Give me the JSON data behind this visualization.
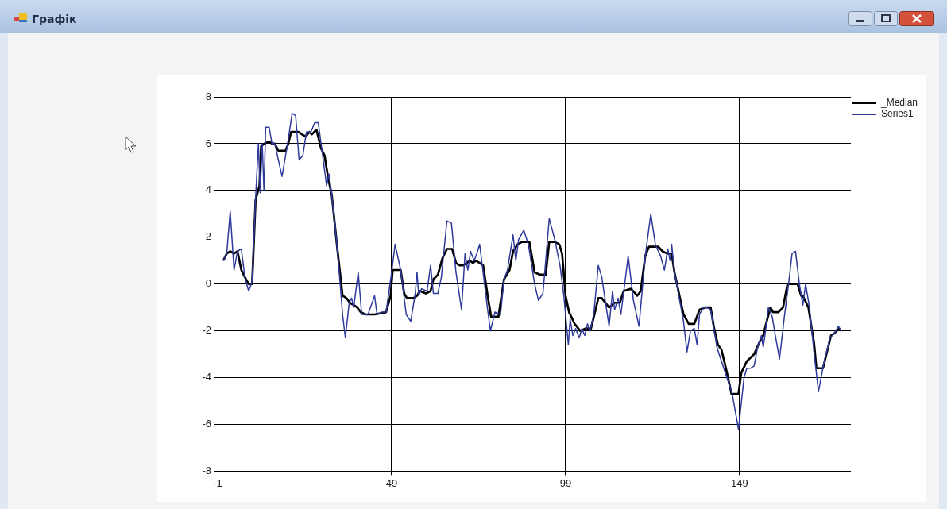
{
  "chart_data": {
    "type": "line",
    "title": "Графік",
    "xlim": [
      -1,
      181
    ],
    "xticks": [
      -1,
      49,
      99,
      149
    ],
    "ylim": [
      -8,
      8
    ],
    "yticks": [
      -8,
      -6,
      -4,
      -2,
      0,
      2,
      4,
      6,
      8
    ],
    "grid": true,
    "legend": "top right",
    "marker": "none",
    "line_style": "solid",
    "series": [
      {
        "name": "_Median",
        "color": "#000000",
        "x": [
          0.6,
          1.6,
          2.6,
          3.7,
          4.7,
          5.8,
          6.8,
          7.9,
          8.9,
          9.9,
          11.0,
          11.5,
          12.5,
          13.8,
          14.6,
          15.4,
          16.4,
          18.5,
          19.3,
          20.1,
          22.2,
          23.2,
          24.3,
          25.3,
          26.1,
          27.4,
          28.7,
          29.7,
          30.8,
          31.8,
          33.4,
          34.9,
          36.0,
          37.0,
          38.1,
          39.1,
          40.1,
          41.4,
          44.1,
          47.4,
          48.7,
          49.3,
          51.1,
          51.6,
          52.6,
          53.4,
          55.3,
          56.3,
          57.1,
          58.9,
          60.2,
          61.0,
          62.3,
          63.6,
          64.9,
          66.4,
          67.5,
          68.5,
          69.6,
          70.6,
          71.4,
          72.4,
          73.2,
          74.3,
          75.3,
          76.6,
          77.6,
          79.7,
          81.3,
          82.9,
          83.9,
          85.2,
          86.5,
          88.6,
          90.1,
          91.7,
          93.3,
          94.3,
          95.9,
          97.2,
          98.0,
          99.0,
          100.0,
          101.6,
          103.2,
          104.7,
          106.3,
          107.3,
          108.4,
          109.4,
          111.5,
          113.1,
          114.6,
          115.7,
          117.8,
          119.6,
          120.6,
          121.9,
          123.0,
          125.6,
          126.9,
          128.2,
          129.5,
          130.3,
          131.3,
          132.9,
          134.4,
          136.0,
          137.5,
          139.1,
          140.7,
          141.7,
          142.8,
          143.8,
          145.4,
          146.7,
          148.7,
          149.5,
          151.1,
          153.2,
          154.7,
          155.8,
          156.8,
          157.9,
          158.6,
          160.2,
          161.5,
          162.8,
          164.6,
          165.7,
          166.7,
          167.2,
          168.8,
          170.4,
          171.1,
          173.0,
          174.3,
          175.3,
          176.3,
          177.6,
          178.2
        ],
        "values": [
          1.0,
          1.3,
          1.4,
          1.3,
          1.4,
          0.6,
          0.3,
          0.0,
          0.0,
          3.6,
          4.2,
          5.9,
          6.0,
          6.1,
          6.0,
          6.0,
          5.7,
          5.7,
          6.0,
          6.5,
          6.5,
          6.4,
          6.3,
          6.5,
          6.4,
          6.6,
          5.8,
          5.5,
          4.5,
          3.8,
          1.5,
          -0.5,
          -0.6,
          -0.8,
          -0.9,
          -1.0,
          -1.2,
          -1.3,
          -1.3,
          -1.2,
          -0.5,
          0.6,
          0.6,
          0.6,
          -0.4,
          -0.6,
          -0.6,
          -0.5,
          -0.3,
          -0.4,
          -0.3,
          0.2,
          0.4,
          1.1,
          1.5,
          1.5,
          0.9,
          0.8,
          0.8,
          0.9,
          1.0,
          0.9,
          1.0,
          0.9,
          0.8,
          -0.5,
          -1.4,
          -1.4,
          0.2,
          0.6,
          1.4,
          1.7,
          1.8,
          1.8,
          0.5,
          0.4,
          0.4,
          1.8,
          1.8,
          1.7,
          1.3,
          -0.5,
          -1.2,
          -1.7,
          -2.0,
          -1.9,
          -1.9,
          -1.3,
          -0.6,
          -0.6,
          -1.0,
          -0.8,
          -0.8,
          -0.3,
          -0.2,
          -0.5,
          -0.3,
          1.2,
          1.6,
          1.6,
          1.4,
          1.3,
          1.3,
          0.5,
          -0.2,
          -1.3,
          -1.7,
          -1.7,
          -1.1,
          -1.0,
          -1.0,
          -1.9,
          -2.6,
          -2.8,
          -3.8,
          -4.7,
          -4.7,
          -3.8,
          -3.3,
          -3.0,
          -2.5,
          -2.2,
          -1.6,
          -1.0,
          -1.2,
          -1.2,
          -1.0,
          0.0,
          0.0,
          0.0,
          -0.5,
          -0.5,
          -1.0,
          -2.5,
          -3.6,
          -3.6,
          -2.8,
          -2.2,
          -2.1,
          -1.9,
          -2.0
        ]
      },
      {
        "name": "Series1",
        "color": "#2e3a9c",
        "x": [
          0.6,
          1.6,
          2.6,
          3.7,
          4.7,
          5.8,
          6.8,
          7.9,
          8.9,
          9.9,
          10.7,
          11.2,
          11.8,
          12.3,
          12.8,
          13.8,
          14.6,
          15.4,
          17.5,
          19.1,
          20.4,
          21.4,
          22.4,
          23.5,
          24.5,
          25.8,
          26.9,
          27.9,
          28.9,
          30.3,
          31.0,
          31.8,
          33.4,
          34.9,
          35.7,
          36.8,
          37.5,
          38.1,
          39.4,
          40.4,
          42.2,
          44.1,
          44.8,
          46.1,
          47.4,
          49.0,
          50.0,
          51.6,
          53.2,
          54.5,
          55.8,
          56.3,
          56.8,
          57.6,
          59.2,
          60.2,
          61.0,
          62.3,
          63.3,
          64.9,
          66.2,
          67.5,
          69.1,
          70.1,
          70.9,
          71.7,
          72.7,
          73.5,
          74.3,
          75.3,
          76.6,
          77.4,
          78.7,
          80.3,
          81.3,
          82.3,
          83.9,
          84.7,
          85.5,
          87.0,
          88.3,
          90.1,
          91.2,
          92.5,
          94.3,
          95.9,
          97.4,
          98.5,
          99.8,
          100.3,
          101.1,
          101.9,
          102.9,
          103.7,
          104.5,
          105.3,
          106.0,
          107.1,
          108.4,
          109.4,
          111.5,
          112.5,
          113.1,
          114.1,
          114.9,
          117.0,
          118.5,
          120.1,
          121.9,
          123.5,
          124.8,
          126.3,
          127.4,
          128.4,
          129.0,
          129.5,
          130.3,
          131.3,
          132.9,
          133.9,
          134.9,
          136.0,
          136.8,
          137.5,
          138.6,
          139.6,
          140.7,
          142.5,
          143.8,
          145.6,
          146.9,
          148.7,
          150.3,
          151.1,
          152.1,
          153.2,
          154.2,
          155.3,
          155.8,
          156.3,
          157.3,
          158.4,
          159.4,
          160.5,
          161.8,
          163.1,
          164.1,
          165.1,
          166.2,
          167.2,
          168.0,
          169.1,
          170.4,
          171.7,
          173.2,
          175.0,
          176.3,
          177.4,
          178.2
        ],
        "values": [
          1.0,
          1.3,
          3.1,
          0.6,
          1.4,
          1.5,
          0.3,
          -0.3,
          0.1,
          3.7,
          6.0,
          3.9,
          6.0,
          4.0,
          6.7,
          6.7,
          6.0,
          6.0,
          4.6,
          6.0,
          7.3,
          7.2,
          5.3,
          5.5,
          6.5,
          6.5,
          6.9,
          6.9,
          5.8,
          4.2,
          4.7,
          3.8,
          1.5,
          -1.3,
          -2.3,
          -0.8,
          -0.6,
          -1.0,
          0.5,
          -1.3,
          -1.3,
          -0.5,
          -1.3,
          -1.2,
          -1.2,
          0.5,
          1.7,
          0.6,
          -1.3,
          -1.6,
          -0.4,
          0.5,
          -0.5,
          -0.2,
          -0.3,
          0.8,
          -0.4,
          -0.4,
          0.3,
          2.7,
          2.6,
          0.5,
          -1.1,
          1.3,
          0.6,
          1.4,
          1.0,
          1.3,
          1.7,
          0.5,
          -1.1,
          -2.0,
          -1.2,
          -1.3,
          0.2,
          0.6,
          2.1,
          1.0,
          1.9,
          2.3,
          1.7,
          0.0,
          -0.7,
          -0.4,
          2.8,
          1.9,
          0.8,
          -0.5,
          -2.6,
          -1.5,
          -2.2,
          -1.9,
          -2.3,
          -1.9,
          -2.2,
          -1.7,
          -2.0,
          -1.3,
          0.8,
          0.3,
          -1.8,
          -0.3,
          -1.1,
          -0.6,
          -1.3,
          1.2,
          -0.7,
          -1.8,
          1.2,
          3.0,
          1.7,
          1.2,
          0.6,
          1.5,
          1.0,
          1.7,
          0.5,
          -0.3,
          -1.6,
          -2.9,
          -2.0,
          -1.9,
          -2.6,
          -1.3,
          -1.0,
          -1.0,
          -1.1,
          -2.7,
          -3.3,
          -4.1,
          -4.7,
          -6.2,
          -4.0,
          -3.6,
          -3.6,
          -3.5,
          -2.7,
          -2.2,
          -2.7,
          -2.2,
          -1.0,
          -1.4,
          -2.3,
          -3.2,
          -1.5,
          0.0,
          1.3,
          1.4,
          0.0,
          -0.9,
          0.0,
          -1.0,
          -2.9,
          -4.6,
          -3.4,
          -2.3,
          -2.1,
          -1.8,
          -2.0
        ]
      }
    ]
  }
}
